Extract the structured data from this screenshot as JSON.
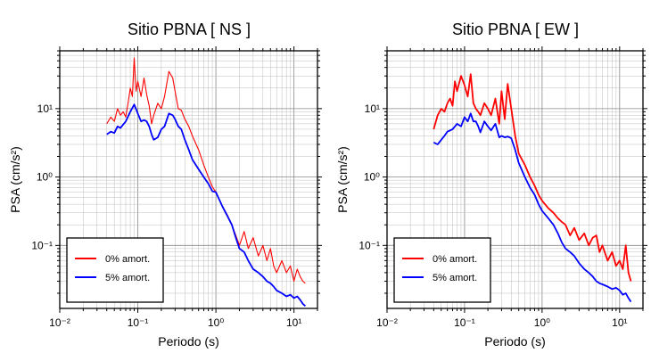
{
  "chart_data": [
    {
      "type": "line",
      "title": "Sitio PBNA [ NS ]",
      "xlabel": "Periodo (s)",
      "ylabel": "PSA (cm/s²)",
      "xscale": "log",
      "yscale": "log",
      "xlim": [
        0.01,
        20
      ],
      "ylim": [
        0.012,
        70
      ],
      "x_ticks": [
        {
          "label": "10⁻²",
          "value": 0.01
        },
        {
          "label": "10⁻¹",
          "value": 0.1
        },
        {
          "label": "10⁰",
          "value": 1
        },
        {
          "label": "10¹",
          "value": 10
        }
      ],
      "y_ticks": [
        {
          "label": "10⁻¹",
          "value": 0.1
        },
        {
          "label": "10⁰",
          "value": 1
        },
        {
          "label": "10¹",
          "value": 10
        }
      ],
      "grid": true,
      "legend_position": "bottom-left",
      "series": [
        {
          "name": "0% amort.",
          "color": "#ff0000",
          "x": [
            0.04,
            0.045,
            0.05,
            0.055,
            0.06,
            0.065,
            0.07,
            0.075,
            0.08,
            0.085,
            0.09,
            0.095,
            0.1,
            0.11,
            0.12,
            0.13,
            0.14,
            0.15,
            0.16,
            0.18,
            0.2,
            0.22,
            0.25,
            0.28,
            0.3,
            0.33,
            0.36,
            0.4,
            0.45,
            0.5,
            0.6,
            0.7,
            0.8,
            0.9,
            1.0,
            1.2,
            1.4,
            1.6,
            1.8,
            2.0,
            2.3,
            2.6,
            3.0,
            3.5,
            4.0,
            4.5,
            5.0,
            5.5,
            6.0,
            7.0,
            8.0,
            9.0,
            10,
            11,
            12,
            13,
            14
          ],
          "y": [
            6,
            7.5,
            6.5,
            10,
            8,
            9,
            7.5,
            12,
            20,
            15,
            55,
            18,
            25,
            15,
            28,
            16,
            11,
            6,
            8,
            12,
            10,
            15,
            35,
            28,
            18,
            10,
            9.5,
            7,
            5.5,
            4,
            2.5,
            1.5,
            1.0,
            0.72,
            0.6,
            0.38,
            0.28,
            0.2,
            0.14,
            0.1,
            0.16,
            0.09,
            0.13,
            0.07,
            0.1,
            0.06,
            0.09,
            0.05,
            0.04,
            0.06,
            0.04,
            0.05,
            0.03,
            0.045,
            0.035,
            0.03,
            0.028
          ]
        },
        {
          "name": "5% amort.",
          "color": "#0000ff",
          "x": [
            0.04,
            0.045,
            0.05,
            0.055,
            0.06,
            0.07,
            0.08,
            0.09,
            0.1,
            0.11,
            0.12,
            0.13,
            0.14,
            0.15,
            0.16,
            0.18,
            0.2,
            0.22,
            0.25,
            0.28,
            0.3,
            0.33,
            0.36,
            0.4,
            0.45,
            0.5,
            0.6,
            0.7,
            0.8,
            0.9,
            1.0,
            1.2,
            1.4,
            1.6,
            1.8,
            2.0,
            2.3,
            2.6,
            3.0,
            3.5,
            4.0,
            4.5,
            5.0,
            5.5,
            6.0,
            7.0,
            8.0,
            9.0,
            10,
            11,
            12,
            13,
            14
          ],
          "y": [
            4.2,
            4.6,
            4.4,
            5.5,
            5.2,
            6.5,
            9,
            11.5,
            8.5,
            6.5,
            6.8,
            6.5,
            5.5,
            4.2,
            3.5,
            3.8,
            5,
            5.5,
            8.5,
            8,
            7,
            5.5,
            5,
            3.5,
            2.5,
            1.8,
            1.3,
            1.0,
            0.8,
            0.62,
            0.6,
            0.38,
            0.27,
            0.2,
            0.13,
            0.09,
            0.08,
            0.06,
            0.045,
            0.04,
            0.035,
            0.03,
            0.028,
            0.025,
            0.022,
            0.02,
            0.018,
            0.019,
            0.017,
            0.018,
            0.016,
            0.014,
            0.013
          ]
        }
      ]
    },
    {
      "type": "line",
      "title": "Sitio PBNA [ EW ]",
      "xlabel": "Periodo (s)",
      "ylabel": "PSA (cm/s²)",
      "xscale": "log",
      "yscale": "log",
      "xlim": [
        0.01,
        20
      ],
      "ylim": [
        0.012,
        70
      ],
      "x_ticks": [
        {
          "label": "10⁻²",
          "value": 0.01
        },
        {
          "label": "10⁻¹",
          "value": 0.1
        },
        {
          "label": "10⁰",
          "value": 1
        },
        {
          "label": "10¹",
          "value": 10
        }
      ],
      "y_ticks": [
        {
          "label": "10⁻¹",
          "value": 0.1
        },
        {
          "label": "10⁰",
          "value": 1
        },
        {
          "label": "10¹",
          "value": 10
        }
      ],
      "grid": true,
      "legend_position": "bottom-left",
      "series": [
        {
          "name": "0% amort.",
          "color": "#ff0000",
          "x": [
            0.04,
            0.045,
            0.05,
            0.055,
            0.06,
            0.065,
            0.07,
            0.075,
            0.08,
            0.09,
            0.1,
            0.11,
            0.12,
            0.13,
            0.14,
            0.15,
            0.16,
            0.18,
            0.2,
            0.22,
            0.25,
            0.28,
            0.3,
            0.33,
            0.36,
            0.4,
            0.45,
            0.5,
            0.6,
            0.7,
            0.8,
            0.9,
            1.0,
            1.2,
            1.4,
            1.6,
            1.8,
            2.0,
            2.3,
            2.6,
            3.0,
            3.5,
            4.0,
            4.5,
            5.0,
            5.5,
            6.0,
            7.0,
            8.0,
            9.0,
            10,
            11,
            12,
            13,
            14
          ],
          "y": [
            5,
            8,
            10,
            9,
            12,
            14,
            11,
            25,
            18,
            30,
            22,
            15,
            32,
            12,
            10,
            9,
            8,
            12,
            10,
            8,
            14,
            6,
            18,
            7,
            23,
            10,
            4,
            2.2,
            1.5,
            1.0,
            0.75,
            0.55,
            0.45,
            0.35,
            0.3,
            0.25,
            0.22,
            0.2,
            0.14,
            0.18,
            0.12,
            0.15,
            0.1,
            0.13,
            0.14,
            0.08,
            0.1,
            0.06,
            0.08,
            0.05,
            0.06,
            0.045,
            0.1,
            0.04,
            0.03
          ]
        },
        {
          "name": "5% amort.",
          "color": "#0000ff",
          "x": [
            0.04,
            0.045,
            0.05,
            0.055,
            0.06,
            0.07,
            0.08,
            0.09,
            0.1,
            0.11,
            0.12,
            0.13,
            0.14,
            0.15,
            0.16,
            0.18,
            0.2,
            0.22,
            0.25,
            0.28,
            0.3,
            0.33,
            0.36,
            0.4,
            0.45,
            0.5,
            0.6,
            0.7,
            0.8,
            0.9,
            1.0,
            1.2,
            1.4,
            1.6,
            1.8,
            2.0,
            2.3,
            2.6,
            3.0,
            3.5,
            4.0,
            4.5,
            5.0,
            5.5,
            6.0,
            7.0,
            8.0,
            9.0,
            10,
            11,
            12,
            13,
            14
          ],
          "y": [
            3.2,
            3.0,
            3.5,
            4.0,
            4.6,
            5.0,
            6.0,
            5.5,
            7.5,
            6.5,
            8.5,
            6.5,
            6.5,
            5.5,
            4.5,
            6.5,
            5.5,
            4.8,
            6.0,
            3.8,
            4.0,
            3.8,
            3.9,
            3.7,
            2.5,
            1.6,
            1.0,
            0.7,
            0.55,
            0.4,
            0.32,
            0.25,
            0.2,
            0.15,
            0.11,
            0.09,
            0.08,
            0.07,
            0.055,
            0.045,
            0.04,
            0.035,
            0.03,
            0.028,
            0.027,
            0.025,
            0.023,
            0.024,
            0.022,
            0.019,
            0.02,
            0.017,
            0.015
          ]
        }
      ]
    }
  ]
}
